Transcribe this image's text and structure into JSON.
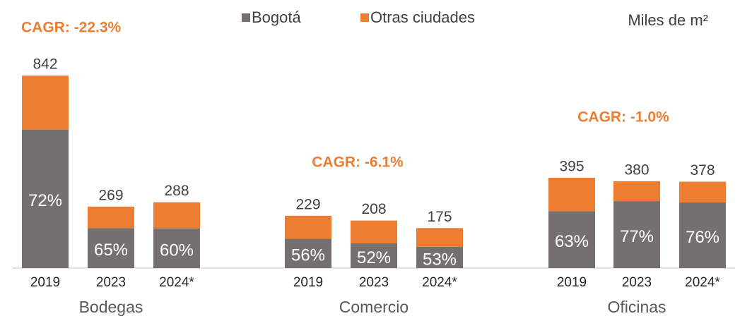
{
  "chart_data": {
    "type": "stacked_bar",
    "unit": "Miles de m²",
    "categories": [
      "2019",
      "2023",
      "2024*",
      "2019",
      "2023",
      "2024*",
      "2019",
      "2023",
      "2024*"
    ],
    "groups": [
      {
        "name": "Bodegas",
        "cagr": "CAGR: -22.3%"
      },
      {
        "name": "Comercio",
        "cagr": "CAGR: -6.1%"
      },
      {
        "name": "Oficinas",
        "cagr": "CAGR: -1.0%"
      }
    ],
    "series": [
      {
        "name": "Bogotá",
        "color": "#757070",
        "values": [
          606,
          175,
          173,
          128,
          108,
          93,
          249,
          293,
          287
        ]
      },
      {
        "name": "Otras ciudades",
        "color": "#ed7d31",
        "values": [
          236,
          94,
          115,
          101,
          100,
          82,
          146,
          87,
          91
        ]
      }
    ],
    "totals": [
      842,
      269,
      288,
      229,
      208,
      175,
      395,
      380,
      378
    ],
    "shares": [
      {
        "value": 72,
        "label": "72%"
      },
      {
        "value": 65,
        "label": "65%"
      },
      {
        "value": 60,
        "label": "60%"
      },
      {
        "value": 56,
        "label": "56%"
      },
      {
        "value": 52,
        "label": "52%"
      },
      {
        "value": 53,
        "label": "53%"
      },
      {
        "value": 63,
        "label": "63%"
      },
      {
        "value": 77,
        "label": "77%"
      },
      {
        "value": 76,
        "label": "76%"
      }
    ],
    "ylim": [
      0,
      1000
    ]
  }
}
